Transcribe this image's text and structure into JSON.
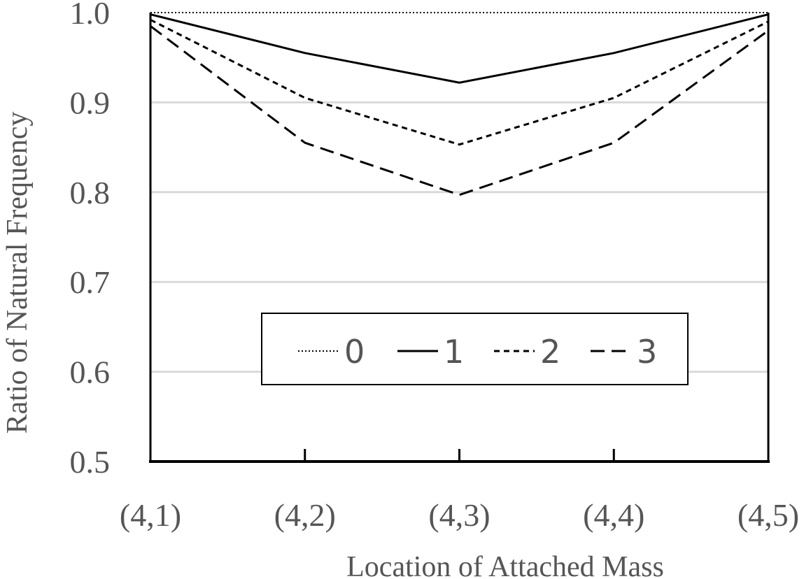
{
  "chart_data": {
    "type": "line",
    "title": "",
    "xlabel": "Location of Attached Mass",
    "ylabel": "Ratio of Natural Frequency",
    "categories": [
      "(4,1)",
      "(4,2)",
      "(4,3)",
      "(4,4)",
      "(4,5)"
    ],
    "ylim": [
      0.5,
      1.0
    ],
    "yticks": [
      "0.5",
      "0.6",
      "0.7",
      "0.8",
      "0.9",
      "1.0"
    ],
    "grid": true,
    "legend_position": "lower-center",
    "series": [
      {
        "name": "0",
        "style": "dotted",
        "values": [
          1.0,
          1.0,
          1.0,
          1.0,
          1.0
        ]
      },
      {
        "name": "1",
        "style": "solid",
        "values": [
          0.998,
          0.955,
          0.922,
          0.955,
          0.998
        ]
      },
      {
        "name": "2",
        "style": "short-dash",
        "values": [
          0.992,
          0.905,
          0.853,
          0.905,
          0.99
        ]
      },
      {
        "name": "3",
        "style": "long-dash",
        "values": [
          0.985,
          0.855,
          0.797,
          0.855,
          0.98
        ]
      }
    ],
    "colors": {
      "line": "#000000",
      "text": "#555555",
      "grid": "#d9d9d9"
    }
  }
}
